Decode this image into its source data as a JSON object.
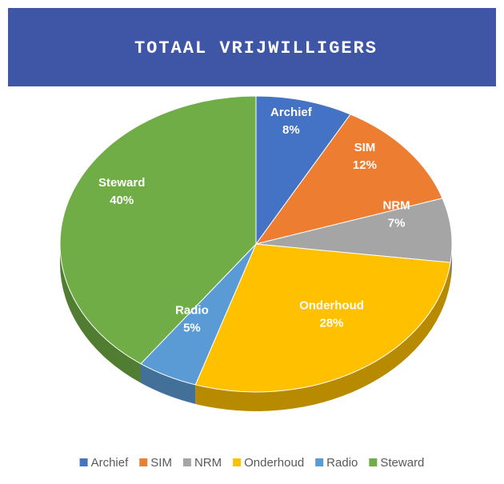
{
  "chart_data": {
    "type": "pie",
    "title": "TOTAAL VRIJWILLIGERS",
    "categories": [
      "Archief",
      "SIM",
      "NRM",
      "Onderhoud",
      "Radio",
      "Steward"
    ],
    "values": [
      8,
      12,
      7,
      28,
      5,
      40
    ],
    "value_labels": [
      "8%",
      "12%",
      "7%",
      "28%",
      "5%",
      "40%"
    ],
    "colors": [
      "#4472c4",
      "#ed7d31",
      "#a5a5a5",
      "#ffc000",
      "#5b9bd5",
      "#70ad47"
    ],
    "legend": "bottom"
  }
}
